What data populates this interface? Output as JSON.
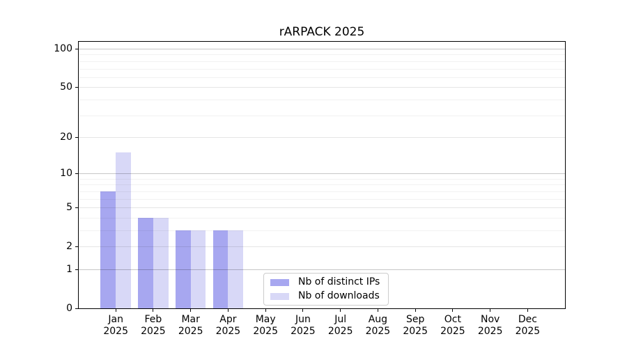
{
  "chart_data": {
    "type": "bar",
    "title": "rARPACK 2025",
    "categories": [
      "Jan",
      "Feb",
      "Mar",
      "Apr",
      "May",
      "Jun",
      "Jul",
      "Aug",
      "Sep",
      "Oct",
      "Nov",
      "Dec"
    ],
    "category_year": "2025",
    "series": [
      {
        "name": "Nb of distinct IPs",
        "color": "#a7a7f0",
        "values": [
          7,
          4,
          3,
          3,
          0,
          0,
          0,
          0,
          0,
          0,
          0,
          0
        ]
      },
      {
        "name": "Nb of downloads",
        "color": "#d8d8f7",
        "values": [
          15,
          4,
          3,
          3,
          0,
          0,
          0,
          0,
          0,
          0,
          0,
          0
        ]
      }
    ],
    "xlabel": "",
    "ylabel": "",
    "y_axis": {
      "scale": "log10(value+1)",
      "tick_values": [
        0,
        1,
        2,
        5,
        10,
        20,
        50,
        100
      ],
      "decade_gridlines": [
        1,
        10,
        100
      ],
      "mid_gridlines": [
        2,
        5,
        20,
        50
      ],
      "minor_gridlines": [
        3,
        4,
        6,
        7,
        8,
        9,
        30,
        40,
        60,
        70,
        80,
        90
      ],
      "top_value": 100
    },
    "grid": {
      "decade_color": "rgba(0,0,0,0.22)",
      "mid_color": "rgba(0,0,0,0.10)",
      "minor_color": "rgba(0,0,0,0.05)"
    },
    "legend": {
      "position": "bottom-center",
      "border_color": "#cccccc"
    }
  }
}
